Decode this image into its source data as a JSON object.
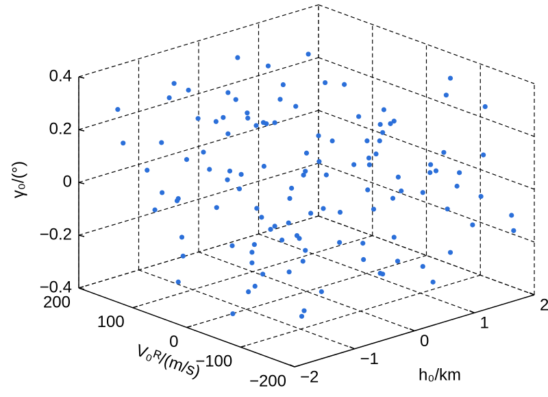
{
  "chart_data": {
    "type": "scatter3d",
    "xlabel": "h₀/km",
    "ylabel": "V₀ᴿ/(m/s)",
    "zlabel": "γ₀/(°)",
    "color": "#2b6fd9",
    "xlim": [
      -2,
      2
    ],
    "ylim": [
      -200,
      200
    ],
    "zlim": [
      -0.4,
      0.4
    ],
    "xticks": [
      {
        "value": -2,
        "label": "−2"
      },
      {
        "value": -1,
        "label": "−1"
      },
      0,
      1,
      2
    ],
    "yticks": [
      {
        "value": -200,
        "label": "−200"
      },
      {
        "value": -100,
        "label": "−100"
      },
      0,
      100,
      200
    ],
    "zticks": [
      {
        "value": -0.4,
        "label": "−0.4"
      },
      {
        "value": -0.2,
        "label": "−0.2"
      },
      0,
      0.2,
      0.4
    ],
    "grid": true,
    "x": [
      -1.8,
      -0.6,
      0.7,
      1.9,
      -1.2,
      0.1,
      1.4,
      -0.3,
      -1.6,
      0.9,
      1.7,
      -0.9,
      0.4,
      -1.4,
      1.1,
      -0.1,
      1.6,
      -1.0,
      0.3,
      -1.9,
      0.6,
      1.3,
      -0.5,
      -1.7,
      0.8,
      1.8,
      -1.3,
      0.0,
      1.5,
      -0.7,
      -1.5,
      0.5,
      1.2,
      -0.2,
      -1.1,
      1.9,
      0.2,
      -0.8,
      1.0,
      -1.6,
      -0.4,
      1.4,
      0.7,
      -1.9,
      1.7,
      -1.2,
      0.3,
      -0.6,
      1.1,
      -1.4,
      0.9,
      1.6,
      -0.1,
      -1.8,
      0.4,
      1.3,
      -0.9,
      -0.3,
      1.8,
      -1.0,
      0.6,
      -1.5,
      1.2,
      0.1,
      -0.7,
      1.5,
      -1.3,
      0.8,
      -0.2,
      1.9,
      -1.7,
      0.5,
      1.0,
      -0.5,
      -1.1,
      1.4,
      0.2,
      -1.6,
      0.7,
      1.7,
      -0.8,
      -1.9,
      1.1,
      0.0,
      -0.4,
      1.6,
      -1.2,
      0.9,
      0.3,
      -1.4,
      1.3,
      -0.6,
      -1.0,
      1.8,
      0.6,
      -1.7,
      -0.1,
      1.0,
      -0.9,
      1.5,
      0.4,
      -1.3,
      1.2,
      -0.3,
      -1.8,
      0.8,
      1.9,
      -0.7,
      0.2,
      -1.5,
      1.4,
      -1.1,
      0.5,
      1.7,
      -0.2,
      -1.6,
      0.1,
      1.1,
      -0.5,
      -1.9
    ],
    "y": [
      150,
      -60,
      30,
      180,
      -170,
      90,
      -20,
      -130,
      60,
      120,
      -90,
      10,
      -190,
      140,
      -40,
      70,
      -150,
      170,
      -110,
      20,
      -70,
      110,
      -180,
      40,
      160,
      -30,
      -140,
      80,
      -100,
      190,
      0,
      -160,
      130,
      -50,
      100,
      -120,
      50,
      -80,
      160,
      -10,
      -150,
      20,
      170,
      -90,
      60,
      -40,
      130,
      -180,
      100,
      -60,
      30,
      -130,
      180,
      -20,
      90,
      -110,
      140,
      -170,
      40,
      -80,
      110,
      -30,
      -190,
      70,
      160,
      -100,
      10,
      -140,
      120,
      -50,
      80,
      -160,
      50,
      190,
      -120,
      0,
      150,
      -70,
      -10,
      -195,
      130,
      -110,
      60,
      -170,
      30,
      170,
      -50,
      -140,
      100,
      -10,
      150,
      -90,
      20,
      -180,
      80,
      -130,
      190,
      -30,
      -100,
      50,
      -60,
      110,
      -150,
      0,
      140,
      -80,
      70,
      -190,
      160,
      -20,
      40,
      -120,
      180,
      -70,
      10,
      -160,
      120,
      -40,
      90,
      -110
    ],
    "z": [
      0.3,
      -0.2,
      0.1,
      -0.35,
      0.25,
      0.0,
      -0.1,
      0.38,
      -0.3,
      0.15,
      -0.05,
      0.33,
      -0.25,
      0.05,
      0.2,
      -0.38,
      0.12,
      -0.15,
      0.35,
      -0.08,
      -0.32,
      0.22,
      0.08,
      -0.18,
      0.28,
      -0.02,
      -0.28,
      0.18,
      0.38,
      -0.12,
      0.02,
      -0.22,
      0.32,
      -0.35,
      0.1,
      0.26,
      -0.06,
      -0.38,
      0.14,
      0.36,
      -0.14,
      0.06,
      -0.26,
      0.24,
      -0.04,
      0.34,
      -0.34,
      0.16,
      0.04,
      -0.24,
      0.3,
      -0.16,
      0.0,
      0.2,
      -0.3,
      0.12,
      -0.1,
      0.38,
      -0.2,
      0.08,
      0.26,
      -0.36,
      0.02,
      0.18,
      -0.12,
      -0.28,
      0.34,
      0.1,
      -0.02,
      -0.18,
      0.22,
      0.06,
      -0.32,
      0.28,
      -0.08,
      0.14,
      0.36,
      -0.24,
      0.04,
      -0.14,
      0.32,
      -0.04,
      -0.22,
      0.16,
      0.24,
      -0.34,
      0.0,
      0.1,
      -0.26,
      0.3,
      -0.16,
      0.2,
      0.38,
      -0.1,
      -0.3,
      0.06,
      0.12,
      -0.38,
      0.26,
      -0.06,
      -0.2,
      0.34,
      0.08,
      -0.12,
      0.18,
      -0.28,
      0.02,
      0.36,
      -0.36,
      0.14,
      -0.02,
      0.22,
      -0.18,
      0.28,
      -0.32,
      0.04,
      0.16,
      -0.24,
      0.32,
      -0.08
    ]
  }
}
